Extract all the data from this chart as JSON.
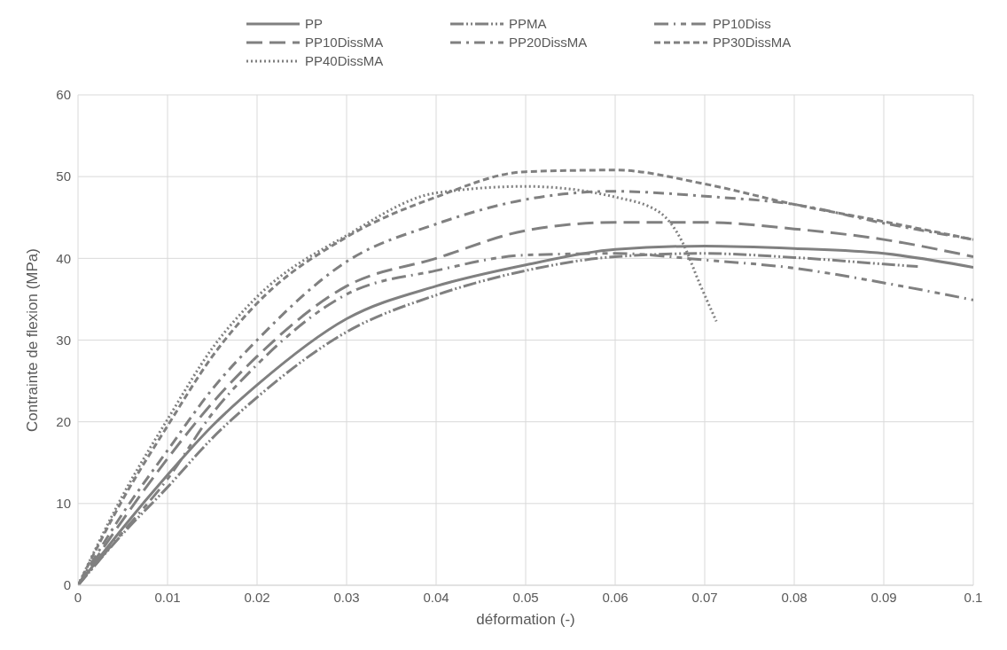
{
  "chart_data": {
    "type": "line",
    "xlabel": "déformation (-)",
    "ylabel": "Contrainte de flexion (MPa)",
    "xlim": [
      0,
      0.1
    ],
    "xticks": [
      0,
      0.01,
      0.02,
      0.03,
      0.04,
      0.05,
      0.06,
      0.07,
      0.08,
      0.09,
      0.1
    ],
    "ylim": [
      0,
      60
    ],
    "yticks": [
      0,
      10,
      20,
      30,
      40,
      50,
      60
    ],
    "grid": true,
    "legend": "top",
    "marker": "none",
    "series": [
      {
        "name": "PP",
        "color": "#808080",
        "line_style": "solid",
        "x": [
          0,
          0.005,
          0.01,
          0.015,
          0.02,
          0.03,
          0.04,
          0.05,
          0.06,
          0.07,
          0.08,
          0.09,
          0.1
        ],
        "values": [
          0,
          7,
          13.5,
          19.5,
          24.5,
          32.6,
          36.6,
          39.2,
          41.1,
          41.5,
          41.2,
          40.6,
          38.9
        ]
      },
      {
        "name": "PPMA",
        "color": "#808080",
        "line_style": "dashed",
        "x": [
          0,
          0.005,
          0.01,
          0.015,
          0.02,
          0.03,
          0.04,
          0.05,
          0.06,
          0.07,
          0.08,
          0.09,
          0.0938
        ],
        "values": [
          0,
          6.3,
          12,
          18,
          23,
          31,
          35.5,
          38.5,
          40.2,
          40.6,
          40.1,
          39.3,
          39
        ]
      },
      {
        "name": "PP10Diss",
        "color": "#808080",
        "line_style": "dashed",
        "x": [
          0,
          0.005,
          0.01,
          0.015,
          0.02,
          0.03,
          0.04,
          0.05,
          0.06,
          0.07,
          0.08,
          0.09,
          0.1
        ],
        "values": [
          0,
          6.5,
          13,
          21,
          27,
          35.6,
          38.5,
          40.4,
          40.6,
          39.8,
          38.8,
          37,
          34.9
        ]
      },
      {
        "name": "PP10DissMA",
        "color": "#808080",
        "line_style": "dashed",
        "x": [
          0,
          0.005,
          0.01,
          0.015,
          0.02,
          0.03,
          0.04,
          0.05,
          0.06,
          0.07,
          0.08,
          0.09,
          0.1
        ],
        "values": [
          0,
          8,
          15.5,
          22.3,
          28,
          36.6,
          40,
          43.4,
          44.4,
          44.4,
          43.6,
          42.3,
          40.2
        ]
      },
      {
        "name": "PP20DissMA",
        "color": "#808080",
        "line_style": "dashed",
        "x": [
          0,
          0.005,
          0.01,
          0.015,
          0.02,
          0.03,
          0.04,
          0.05,
          0.06,
          0.07,
          0.08,
          0.09,
          0.1
        ],
        "values": [
          0,
          8.8,
          16.5,
          24,
          30,
          39.6,
          44.2,
          47.2,
          48.2,
          47.6,
          46.6,
          44.3,
          42.3
        ]
      },
      {
        "name": "PP30DissMA",
        "color": "#808080",
        "line_style": "dashed",
        "x": [
          0,
          0.005,
          0.01,
          0.015,
          0.02,
          0.03,
          0.04,
          0.05,
          0.06,
          0.07,
          0.08,
          0.09,
          0.1
        ],
        "values": [
          0,
          10.5,
          19.5,
          28,
          34.5,
          42.6,
          47.5,
          50.6,
          50.8,
          49.1,
          46.6,
          44.5,
          42.3
        ]
      },
      {
        "name": "PP40DissMA",
        "color": "#808080",
        "line_style": "dotted",
        "x": [
          0,
          0.005,
          0.01,
          0.015,
          0.02,
          0.03,
          0.04,
          0.05,
          0.06,
          0.065,
          0.0675,
          0.0694,
          0.0713
        ],
        "values": [
          0,
          11,
          20.3,
          29,
          35.3,
          42.8,
          48,
          48.8,
          47.5,
          45.6,
          42,
          37,
          32.3
        ]
      }
    ]
  }
}
